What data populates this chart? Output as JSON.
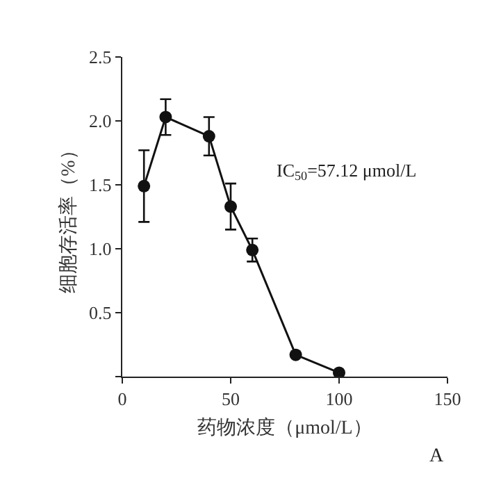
{
  "chart_data": {
    "type": "line",
    "xlabel": "药物浓度（μmol/L）",
    "ylabel": "细胞存活率（%）",
    "x": [
      10,
      20,
      40,
      50,
      60,
      80,
      100
    ],
    "series": [
      {
        "color": "#111111",
        "values": [
          1.49,
          2.03,
          1.88,
          1.33,
          0.99,
          0.17,
          0.03
        ],
        "errors": [
          0.28,
          0.14,
          0.15,
          0.18,
          0.09,
          null,
          null
        ]
      }
    ],
    "xlim": [
      0,
      150
    ],
    "ylim": [
      0,
      2.5
    ],
    "xticks": [
      0,
      50,
      100,
      150
    ],
    "yticks": [
      {
        "value": 0,
        "label": null
      },
      0.5,
      {
        "value": 1,
        "label": "1.0"
      },
      1.5,
      {
        "value": 2,
        "label": "2.0"
      },
      2.5
    ],
    "marker": "circle",
    "line_style": "solid",
    "legend": false,
    "annotations": [
      "IC$_{50}$=57.12 μmol/L",
      "A"
    ]
  }
}
